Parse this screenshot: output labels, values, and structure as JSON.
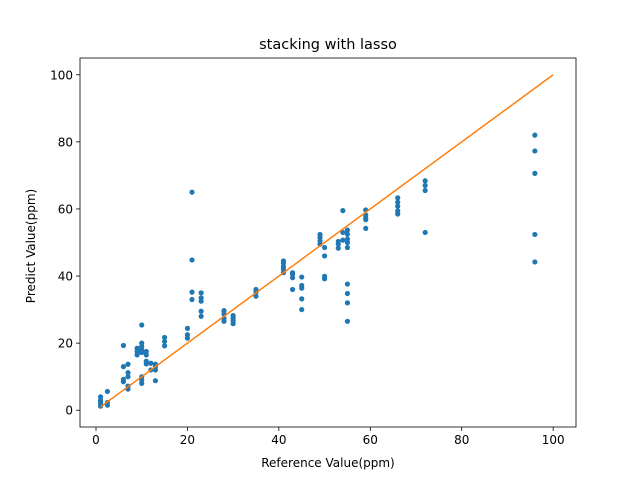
{
  "chart_data": {
    "type": "scatter",
    "title": "stacking with lasso",
    "xlabel": "Reference Value(ppm)",
    "ylabel": "Predict Value(ppm)",
    "xlim": [
      -3.5,
      105
    ],
    "ylim": [
      -5,
      105
    ],
    "x_ticks": [
      0,
      20,
      40,
      60,
      80,
      100
    ],
    "y_ticks": [
      0,
      20,
      40,
      60,
      80,
      100
    ],
    "grid": false,
    "legend": "none",
    "colors": {
      "points": "#1f77b4",
      "line": "#ff7f0e"
    },
    "series": [
      {
        "type": "scatter",
        "points": [
          [
            1,
            1.2
          ],
          [
            1,
            2.0
          ],
          [
            1,
            3.0
          ],
          [
            1,
            4.0
          ],
          [
            1,
            2.6
          ],
          [
            2.5,
            1.5
          ],
          [
            2.5,
            2.3
          ],
          [
            2.5,
            5.6
          ],
          [
            6,
            8.5
          ],
          [
            6,
            9.2
          ],
          [
            6,
            13.0
          ],
          [
            6,
            19.3
          ],
          [
            7,
            6.3
          ],
          [
            7,
            7.2
          ],
          [
            7,
            10.0
          ],
          [
            7,
            11.2
          ],
          [
            7,
            13.7
          ],
          [
            9,
            16.5
          ],
          [
            9,
            17.5
          ],
          [
            9,
            18.5
          ],
          [
            10,
            8.0
          ],
          [
            10,
            9.0
          ],
          [
            10,
            10.0
          ],
          [
            10,
            17.2
          ],
          [
            10,
            18.0
          ],
          [
            10,
            19.0
          ],
          [
            10,
            20.0
          ],
          [
            10,
            25.4
          ],
          [
            11,
            13.8
          ],
          [
            11,
            14.6
          ],
          [
            11,
            16.5
          ],
          [
            11,
            17.5
          ],
          [
            12,
            12.0
          ],
          [
            12,
            14.0
          ],
          [
            13,
            8.8
          ],
          [
            13,
            12.0
          ],
          [
            13,
            13.0
          ],
          [
            13,
            13.7
          ],
          [
            15,
            19.2
          ],
          [
            15,
            20.5
          ],
          [
            15,
            21.7
          ],
          [
            20,
            21.5
          ],
          [
            20,
            22.5
          ],
          [
            20,
            24.4
          ],
          [
            21,
            33.0
          ],
          [
            21,
            35.2
          ],
          [
            21,
            44.8
          ],
          [
            21,
            65.0
          ],
          [
            23,
            28.0
          ],
          [
            23,
            29.5
          ],
          [
            23,
            32.5
          ],
          [
            23,
            33.5
          ],
          [
            23,
            35.0
          ],
          [
            28,
            26.5
          ],
          [
            28,
            27.4
          ],
          [
            28,
            28.7
          ],
          [
            28,
            29.7
          ],
          [
            30,
            25.8
          ],
          [
            30,
            26.7
          ],
          [
            30,
            27.5
          ],
          [
            30,
            28.2
          ],
          [
            35,
            34.0
          ],
          [
            35,
            35.2
          ],
          [
            35,
            36.0
          ],
          [
            41,
            41.0
          ],
          [
            41,
            42.0
          ],
          [
            41,
            42.8
          ],
          [
            41,
            43.8
          ],
          [
            41,
            44.5
          ],
          [
            43,
            36.0
          ],
          [
            43,
            39.5
          ],
          [
            43,
            40.5
          ],
          [
            43,
            41.0
          ],
          [
            45,
            30.0
          ],
          [
            45,
            33.2
          ],
          [
            45,
            36.4
          ],
          [
            45,
            37.2
          ],
          [
            45,
            39.7
          ],
          [
            49,
            49.5
          ],
          [
            49,
            50.5
          ],
          [
            49,
            51.5
          ],
          [
            49,
            52.4
          ],
          [
            50,
            39.2
          ],
          [
            50,
            39.9
          ],
          [
            50,
            46.0
          ],
          [
            50,
            48.5
          ],
          [
            53,
            48.3
          ],
          [
            53,
            49.5
          ],
          [
            53,
            50.3
          ],
          [
            54,
            50.7
          ],
          [
            54,
            53.0
          ],
          [
            54,
            59.5
          ],
          [
            55,
            26.5
          ],
          [
            55,
            32.0
          ],
          [
            55,
            34.8
          ],
          [
            55,
            37.6
          ],
          [
            55,
            48.5
          ],
          [
            55,
            50.0
          ],
          [
            55,
            51.0
          ],
          [
            55,
            52.5
          ],
          [
            55,
            53.7
          ],
          [
            59,
            54.2
          ],
          [
            59,
            56.8
          ],
          [
            59,
            57.4
          ],
          [
            59,
            58.2
          ],
          [
            59,
            59.7
          ],
          [
            66,
            58.5
          ],
          [
            66,
            59.4
          ],
          [
            66,
            60.8
          ],
          [
            66,
            62.0
          ],
          [
            66,
            63.3
          ],
          [
            72,
            53.0
          ],
          [
            72,
            65.5
          ],
          [
            72,
            67.0
          ],
          [
            72,
            68.4
          ],
          [
            96,
            44.2
          ],
          [
            96,
            52.4
          ],
          [
            96,
            70.6
          ],
          [
            96,
            77.3
          ],
          [
            96,
            82.0
          ]
        ]
      },
      {
        "type": "line",
        "points": [
          [
            1,
            1
          ],
          [
            100,
            100
          ]
        ]
      }
    ]
  }
}
